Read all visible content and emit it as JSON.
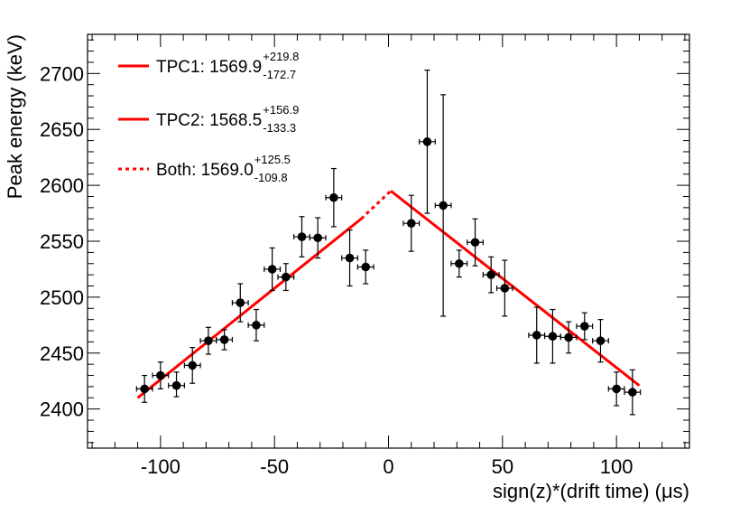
{
  "chart_data": {
    "type": "scatter",
    "xlabel": "sign(z)*(drift time) (μs)",
    "ylabel": "Peak energy (keV)",
    "xlim": [
      -132,
      132
    ],
    "ylim": [
      2365,
      2735
    ],
    "x_ticks": [
      -100,
      -50,
      0,
      50,
      100
    ],
    "x_tick_labels": [
      "-100",
      "-50",
      "0",
      "50",
      "100"
    ],
    "y_ticks": [
      2400,
      2450,
      2500,
      2550,
      2600,
      2650,
      2700
    ],
    "y_tick_labels": [
      "2400",
      "2450",
      "2500",
      "2550",
      "2600",
      "2650",
      "2700"
    ],
    "points": [
      {
        "x": -107,
        "y": 2418,
        "xerr": 3.5,
        "yerr_low": 12,
        "yerr_high": 12
      },
      {
        "x": -100,
        "y": 2430,
        "xerr": 3.5,
        "yerr_low": 12,
        "yerr_high": 12
      },
      {
        "x": -93,
        "y": 2421,
        "xerr": 3.5,
        "yerr_low": 10,
        "yerr_high": 12
      },
      {
        "x": -86,
        "y": 2439,
        "xerr": 3.5,
        "yerr_low": 16,
        "yerr_high": 16
      },
      {
        "x": -79,
        "y": 2461,
        "xerr": 3.5,
        "yerr_low": 12,
        "yerr_high": 12
      },
      {
        "x": -72,
        "y": 2462,
        "xerr": 3.5,
        "yerr_low": 9,
        "yerr_high": 9
      },
      {
        "x": -65,
        "y": 2495,
        "xerr": 3.5,
        "yerr_low": 17,
        "yerr_high": 17
      },
      {
        "x": -58,
        "y": 2475,
        "xerr": 3.5,
        "yerr_low": 14,
        "yerr_high": 14
      },
      {
        "x": -51,
        "y": 2525,
        "xerr": 3.5,
        "yerr_low": 19,
        "yerr_high": 19
      },
      {
        "x": -45,
        "y": 2518,
        "xerr": 3.5,
        "yerr_low": 12,
        "yerr_high": 12
      },
      {
        "x": -38,
        "y": 2554,
        "xerr": 3.5,
        "yerr_low": 18,
        "yerr_high": 18
      },
      {
        "x": -31,
        "y": 2553,
        "xerr": 3.5,
        "yerr_low": 18,
        "yerr_high": 18
      },
      {
        "x": -24,
        "y": 2589,
        "xerr": 3.5,
        "yerr_low": 26,
        "yerr_high": 26
      },
      {
        "x": -17,
        "y": 2535,
        "xerr": 3.5,
        "yerr_low": 25,
        "yerr_high": 25
      },
      {
        "x": -10,
        "y": 2527,
        "xerr": 3.5,
        "yerr_low": 15,
        "yerr_high": 15
      },
      {
        "x": 10,
        "y": 2566,
        "xerr": 3.5,
        "yerr_low": 25,
        "yerr_high": 25
      },
      {
        "x": 17,
        "y": 2639,
        "xerr": 3.5,
        "yerr_low": 64,
        "yerr_high": 64
      },
      {
        "x": 24,
        "y": 2582,
        "xerr": 3.5,
        "yerr_low": 99,
        "yerr_high": 99
      },
      {
        "x": 31,
        "y": 2530,
        "xerr": 3.5,
        "yerr_low": 12,
        "yerr_high": 12
      },
      {
        "x": 38,
        "y": 2549,
        "xerr": 3.5,
        "yerr_low": 21,
        "yerr_high": 21
      },
      {
        "x": 45,
        "y": 2520,
        "xerr": 3.5,
        "yerr_low": 16,
        "yerr_high": 16
      },
      {
        "x": 51,
        "y": 2508,
        "xerr": 3.5,
        "yerr_low": 25,
        "yerr_high": 25
      },
      {
        "x": 65,
        "y": 2466,
        "xerr": 3.5,
        "yerr_low": 25,
        "yerr_high": 25
      },
      {
        "x": 72,
        "y": 2465,
        "xerr": 3.5,
        "yerr_low": 24,
        "yerr_high": 24
      },
      {
        "x": 79,
        "y": 2464,
        "xerr": 3.5,
        "yerr_low": 14,
        "yerr_high": 14
      },
      {
        "x": 86,
        "y": 2474,
        "xerr": 3.5,
        "yerr_low": 12,
        "yerr_high": 12
      },
      {
        "x": 93,
        "y": 2461,
        "xerr": 3.5,
        "yerr_low": 19,
        "yerr_high": 19
      },
      {
        "x": 100,
        "y": 2418,
        "xerr": 3.5,
        "yerr_low": 15,
        "yerr_high": 15
      },
      {
        "x": 107,
        "y": 2415,
        "xerr": 3.5,
        "yerr_low": 20,
        "yerr_high": 20
      }
    ],
    "fit_lines": [
      {
        "name": "TPC1",
        "style": "solid",
        "color": "#ff0000",
        "x": [
          -110,
          -12
        ],
        "y": [
          2410,
          2570
        ]
      },
      {
        "name": "Both",
        "style": "dotted",
        "color": "#ff0000",
        "x": [
          -12,
          1
        ],
        "y": [
          2570,
          2595
        ]
      },
      {
        "name": "TPC2",
        "style": "solid",
        "color": "#ff0000",
        "x": [
          1,
          110
        ],
        "y": [
          2595,
          2421
        ]
      }
    ],
    "legend": {
      "placement": "top-left",
      "entries": [
        {
          "style": "solid",
          "color": "#ff0000",
          "text": "TPC1: 1569.9",
          "sup": "+219.8",
          "sub": "-172.7"
        },
        {
          "style": "solid",
          "color": "#ff0000",
          "text": "TPC2: 1568.5",
          "sup": "+156.9",
          "sub": "-133.3"
        },
        {
          "style": "dotted",
          "color": "#ff0000",
          "text": "Both: 1569.0",
          "sup": "+125.5",
          "sub": "-109.8"
        }
      ]
    }
  }
}
